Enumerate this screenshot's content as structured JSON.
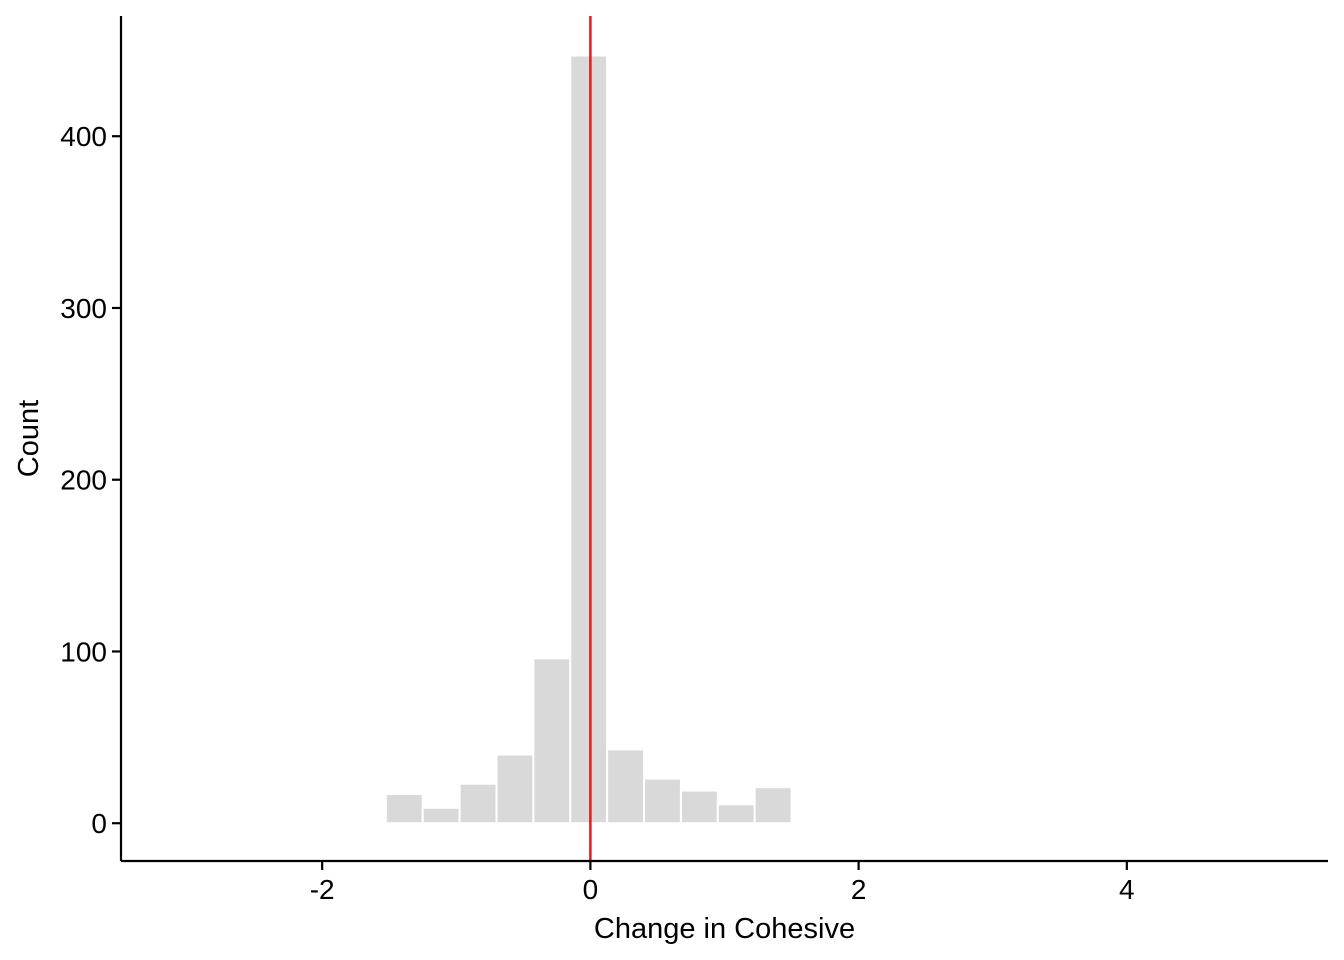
{
  "chart_data": {
    "type": "bar",
    "xlabel": "Change in Cohesive",
    "ylabel": "Count",
    "xlim": [
      -3.5,
      5.5
    ],
    "ylim": [
      -22,
      470
    ],
    "xticks": [
      -2,
      0,
      2,
      4
    ],
    "xtick_labels": [
      "-2",
      "0",
      "2",
      "4"
    ],
    "yticks": [
      0,
      100,
      200,
      300,
      400
    ],
    "ytick_labels": [
      "0",
      "100",
      "200",
      "300",
      "400"
    ],
    "bin_width": 0.275,
    "bins": [
      {
        "x0": -2.35,
        "x1": -2.075,
        "count": 1
      },
      {
        "x0": -1.525,
        "x1": -1.25,
        "count": 17
      },
      {
        "x0": -1.25,
        "x1": -0.975,
        "count": 9
      },
      {
        "x0": -0.975,
        "x1": -0.7,
        "count": 23
      },
      {
        "x0": -0.7,
        "x1": -0.425,
        "count": 40
      },
      {
        "x0": -0.425,
        "x1": -0.15,
        "count": 96
      },
      {
        "x0": -0.15,
        "x1": 0.125,
        "count": 447
      },
      {
        "x0": 0.125,
        "x1": 0.4,
        "count": 43
      },
      {
        "x0": 0.4,
        "x1": 0.675,
        "count": 26
      },
      {
        "x0": 0.675,
        "x1": 0.95,
        "count": 19
      },
      {
        "x0": 0.95,
        "x1": 1.225,
        "count": 11
      },
      {
        "x0": 1.225,
        "x1": 1.5,
        "count": 21
      },
      {
        "x0": 1.5,
        "x1": 1.775,
        "count": 1
      },
      {
        "x0": 2.325,
        "x1": 2.6,
        "count": 1
      }
    ],
    "reference_line_x": 0,
    "grid": false,
    "legend": "none",
    "colors": {
      "bar_fill": "#d9d9d9",
      "bar_stroke": "#ffffff",
      "reference_line": "#e31a1c",
      "axis": "#000000"
    }
  }
}
